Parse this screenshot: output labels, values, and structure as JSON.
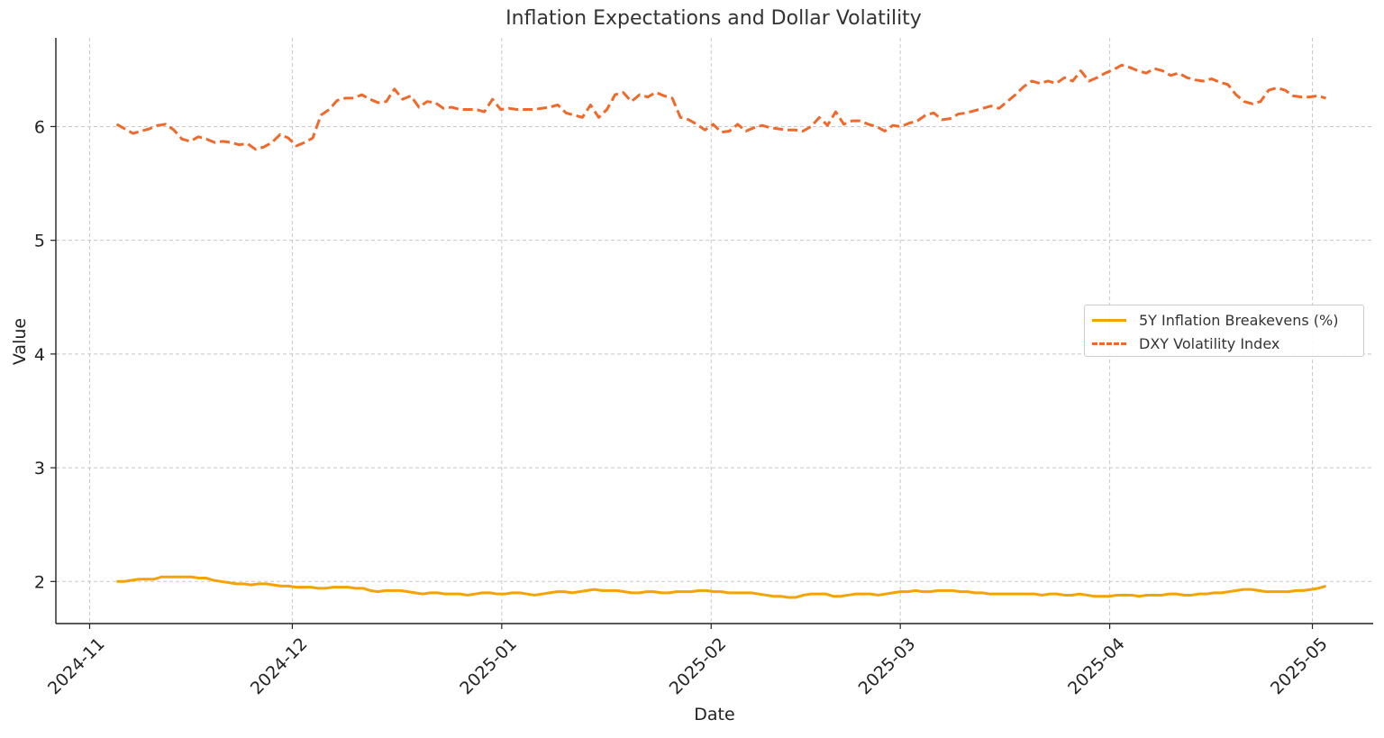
{
  "chart_data": {
    "type": "line",
    "title": "Inflation Expectations and Dollar Volatility",
    "xlabel": "Date",
    "ylabel": "Value",
    "x_start": "2024-11-05",
    "x_end": "2025-05-03",
    "xlim": [
      "2024-10-27",
      "2025-05-10"
    ],
    "ylim": [
      1.63,
      6.78
    ],
    "x_ticks": [
      "2024-11",
      "2024-12",
      "2025-01",
      "2025-02",
      "2025-03",
      "2025-04",
      "2025-05"
    ],
    "x_tick_dates": [
      "2024-11-01",
      "2024-12-01",
      "2025-01-01",
      "2025-02-01",
      "2025-03-01",
      "2025-04-01",
      "2025-05-01"
    ],
    "y_ticks": [
      2,
      3,
      4,
      5,
      6
    ],
    "grid": true,
    "legend_position": "center-right",
    "series": [
      {
        "name": "5Y Inflation Breakevens (%)",
        "color": "#f5a300",
        "style": "solid",
        "values": [
          2.0,
          2.0,
          2.01,
          2.02,
          2.02,
          2.02,
          2.04,
          2.04,
          2.04,
          2.04,
          2.04,
          2.03,
          2.03,
          2.01,
          2.0,
          1.99,
          1.98,
          1.98,
          1.97,
          1.98,
          1.98,
          1.97,
          1.96,
          1.96,
          1.95,
          1.95,
          1.95,
          1.94,
          1.94,
          1.95,
          1.95,
          1.95,
          1.94,
          1.94,
          1.92,
          1.91,
          1.92,
          1.92,
          1.92,
          1.91,
          1.9,
          1.89,
          1.9,
          1.9,
          1.89,
          1.89,
          1.89,
          1.88,
          1.89,
          1.9,
          1.9,
          1.89,
          1.89,
          1.9,
          1.9,
          1.89,
          1.88,
          1.89,
          1.9,
          1.91,
          1.91,
          1.9,
          1.91,
          1.92,
          1.93,
          1.92,
          1.92,
          1.92,
          1.91,
          1.9,
          1.9,
          1.91,
          1.91,
          1.9,
          1.9,
          1.91,
          1.91,
          1.91,
          1.92,
          1.92,
          1.91,
          1.91,
          1.9,
          1.9,
          1.9,
          1.9,
          1.89,
          1.88,
          1.87,
          1.87,
          1.86,
          1.86,
          1.88,
          1.89,
          1.89,
          1.89,
          1.87,
          1.87,
          1.88,
          1.89,
          1.89,
          1.89,
          1.88,
          1.89,
          1.9,
          1.91,
          1.91,
          1.92,
          1.91,
          1.91,
          1.92,
          1.92,
          1.92,
          1.91,
          1.91,
          1.9,
          1.9,
          1.89,
          1.89,
          1.89,
          1.89,
          1.89,
          1.89,
          1.89,
          1.88,
          1.89,
          1.89,
          1.88,
          1.88,
          1.89,
          1.88,
          1.87,
          1.87,
          1.87,
          1.88,
          1.88,
          1.88,
          1.87,
          1.88,
          1.88,
          1.88,
          1.89,
          1.89,
          1.88,
          1.88,
          1.89,
          1.89,
          1.9,
          1.9,
          1.91,
          1.92,
          1.93,
          1.93,
          1.92,
          1.91,
          1.91,
          1.91,
          1.91,
          1.92,
          1.92,
          1.93,
          1.94,
          1.96
        ]
      },
      {
        "name": "DXY Volatility Index",
        "color": "#f0692a",
        "style": "dashed",
        "values": [
          6.02,
          5.98,
          5.94,
          5.96,
          5.98,
          6.01,
          6.02,
          5.97,
          5.89,
          5.87,
          5.91,
          5.89,
          5.86,
          5.87,
          5.86,
          5.84,
          5.85,
          5.8,
          5.82,
          5.86,
          5.93,
          5.9,
          5.83,
          5.86,
          5.9,
          6.1,
          6.15,
          6.23,
          6.25,
          6.25,
          6.28,
          6.24,
          6.21,
          6.22,
          6.33,
          6.24,
          6.27,
          6.17,
          6.22,
          6.21,
          6.16,
          6.17,
          6.15,
          6.15,
          6.15,
          6.13,
          6.24,
          6.15,
          6.16,
          6.15,
          6.15,
          6.15,
          6.16,
          6.17,
          6.19,
          6.12,
          6.1,
          6.08,
          6.19,
          6.08,
          6.15,
          6.28,
          6.3,
          6.22,
          6.28,
          6.26,
          6.3,
          6.27,
          6.25,
          6.08,
          6.06,
          6.02,
          5.97,
          6.02,
          5.95,
          5.96,
          6.02,
          5.96,
          5.99,
          6.01,
          5.99,
          5.98,
          5.97,
          5.97,
          5.96,
          6.0,
          6.08,
          6.01,
          6.13,
          6.02,
          6.05,
          6.05,
          6.02,
          6.0,
          5.96,
          6.01,
          6.0,
          6.03,
          6.05,
          6.1,
          6.12,
          6.06,
          6.07,
          6.11,
          6.12,
          6.14,
          6.16,
          6.18,
          6.16,
          6.22,
          6.28,
          6.35,
          6.4,
          6.38,
          6.4,
          6.38,
          6.43,
          6.4,
          6.49,
          6.4,
          6.43,
          6.47,
          6.5,
          6.54,
          6.52,
          6.49,
          6.47,
          6.51,
          6.49,
          6.45,
          6.47,
          6.43,
          6.41,
          6.4,
          6.42,
          6.39,
          6.37,
          6.28,
          6.22,
          6.2,
          6.22,
          6.32,
          6.34,
          6.32,
          6.27,
          6.26,
          6.26,
          6.27,
          6.25
        ]
      }
    ]
  }
}
